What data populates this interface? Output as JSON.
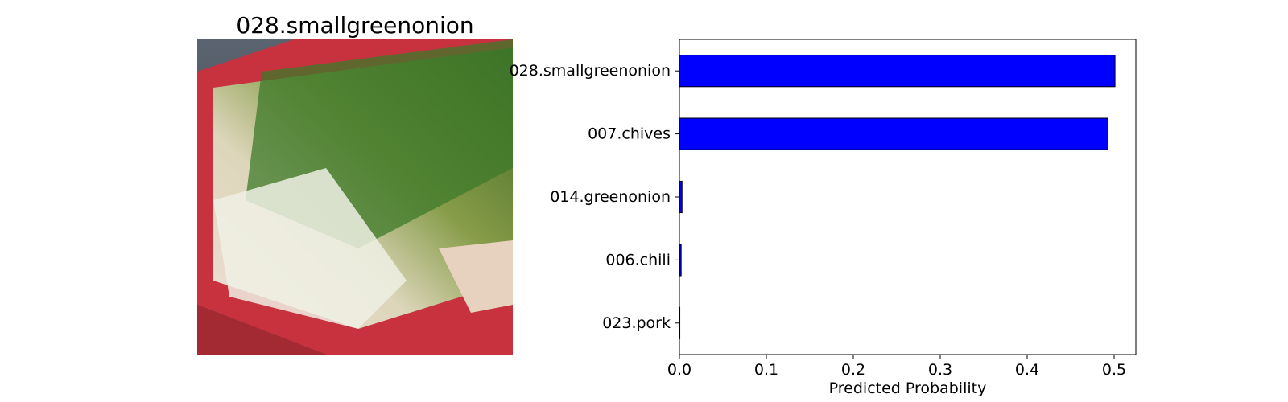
{
  "image_panel": {
    "title": "028.smallgreenonion"
  },
  "chart_data": {
    "type": "bar",
    "orientation": "horizontal",
    "categories": [
      "028.smallgreenonion",
      "007.chives",
      "014.greenonion",
      "006.chili",
      "023.pork"
    ],
    "values": [
      0.501,
      0.493,
      0.003,
      0.002,
      0.0005
    ],
    "xlabel": "Predicted Probability",
    "ylabel": "",
    "xlim": [
      0,
      0.525
    ],
    "xticks": [
      0.0,
      0.1,
      0.2,
      0.3,
      0.4,
      0.5
    ],
    "xtick_labels": [
      "0.0",
      "0.1",
      "0.2",
      "0.3",
      "0.4",
      "0.5"
    ],
    "bar_color": "#0000ff",
    "edge_color": "#000000",
    "grid": false
  }
}
